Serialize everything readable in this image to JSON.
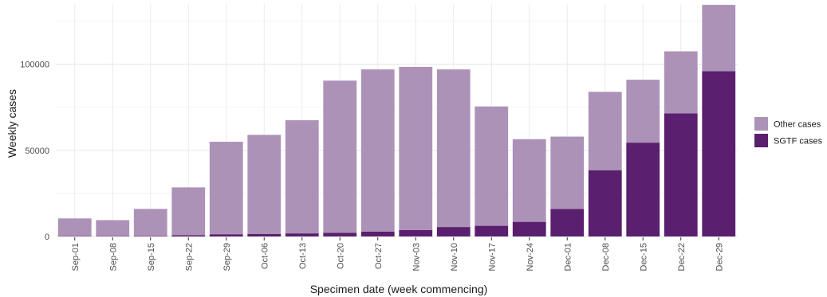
{
  "chart_data": {
    "type": "bar",
    "stacked": true,
    "categories": [
      "Sep-01",
      "Sep-08",
      "Sep-15",
      "Sep-22",
      "Sep-29",
      "Oct-06",
      "Oct-13",
      "Oct-20",
      "Oct-27",
      "Nov-03",
      "Nov-10",
      "Nov-17",
      "Nov-24",
      "Dec-01",
      "Dec-08",
      "Dec-15",
      "Dec-22",
      "Dec-29"
    ],
    "series": [
      {
        "name": "SGTF cases",
        "color": "#5a1f6e",
        "values": [
          200,
          200,
          300,
          700,
          1300,
          1500,
          1800,
          2200,
          2800,
          3800,
          5500,
          6200,
          8500,
          16000,
          38500,
          54500,
          71500,
          96000
        ]
      },
      {
        "name": "Other cases",
        "color": "#ad92b8",
        "values": [
          10300,
          9300,
          15700,
          27800,
          53700,
          57500,
          65700,
          88300,
          94200,
          94700,
          91500,
          69300,
          48000,
          42000,
          45500,
          36500,
          36000,
          38500
        ]
      }
    ],
    "legend_order": [
      "Other cases",
      "SGTF cases"
    ],
    "xlabel": "Specimen date (week commencing)",
    "ylabel": "Weekly cases",
    "yticks": [
      0,
      50000,
      100000
    ],
    "ylim": [
      0,
      135000
    ],
    "grid": true,
    "legend_position": "right"
  }
}
